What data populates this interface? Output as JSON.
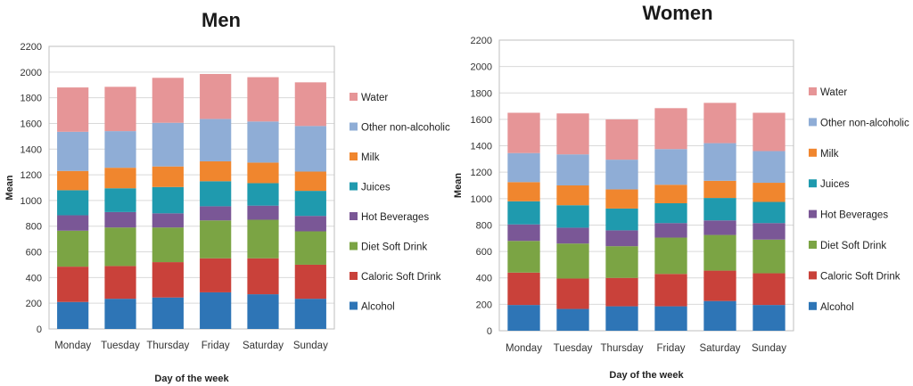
{
  "chart_data": [
    {
      "type": "bar",
      "stacked": true,
      "title": "Men",
      "xlabel": "Day of the week",
      "ylabel": "Mean",
      "ylim": [
        0,
        2200
      ],
      "yticks": [
        0,
        200,
        400,
        600,
        800,
        1000,
        1200,
        1400,
        1600,
        1800,
        2000,
        2200
      ],
      "categories": [
        "Monday",
        "Tuesday",
        "Thursday",
        "Friday",
        "Saturday",
        "Sunday"
      ],
      "legend_position": "right",
      "series": [
        {
          "name": "Alcohol",
          "color": "#2E75B6",
          "values": [
            210,
            235,
            245,
            285,
            270,
            235
          ]
        },
        {
          "name": "Caloric Soft Drink",
          "color": "#C9413A",
          "values": [
            275,
            255,
            275,
            265,
            280,
            265
          ]
        },
        {
          "name": "Diet Soft Drink",
          "color": "#7BA444",
          "values": [
            280,
            300,
            270,
            295,
            300,
            260
          ]
        },
        {
          "name": "Hot Beverages",
          "color": "#7A5796",
          "values": [
            120,
            120,
            110,
            110,
            110,
            120
          ]
        },
        {
          "name": "Juices",
          "color": "#1F9AAE",
          "values": [
            195,
            185,
            205,
            195,
            175,
            195
          ]
        },
        {
          "name": "Milk",
          "color": "#F0862E",
          "values": [
            150,
            160,
            160,
            155,
            160,
            150
          ]
        },
        {
          "name": "Other non-alcoholic",
          "color": "#8FADD6",
          "values": [
            305,
            285,
            340,
            330,
            320,
            355
          ]
        },
        {
          "name": "Water",
          "color": "#E69597",
          "values": [
            345,
            345,
            350,
            350,
            345,
            340
          ]
        }
      ]
    },
    {
      "type": "bar",
      "stacked": true,
      "title": "Women",
      "xlabel": "Day of the week",
      "ylabel": "Mean",
      "ylim": [
        0,
        2200
      ],
      "yticks": [
        0,
        200,
        400,
        600,
        800,
        1000,
        1200,
        1400,
        1600,
        1800,
        2000,
        2200
      ],
      "categories": [
        "Monday",
        "Tuesday",
        "Thursday",
        "Friday",
        "Saturday",
        "Sunday"
      ],
      "legend_position": "right",
      "series": [
        {
          "name": "Alcohol",
          "color": "#2E75B6",
          "values": [
            195,
            165,
            185,
            185,
            225,
            195
          ]
        },
        {
          "name": "Caloric Soft Drink",
          "color": "#C9413A",
          "values": [
            245,
            230,
            215,
            245,
            230,
            240
          ]
        },
        {
          "name": "Diet Soft Drink",
          "color": "#7BA444",
          "values": [
            240,
            265,
            240,
            275,
            270,
            255
          ]
        },
        {
          "name": "Hot Beverages",
          "color": "#7A5796",
          "values": [
            125,
            120,
            120,
            110,
            110,
            125
          ]
        },
        {
          "name": "Juices",
          "color": "#1F9AAE",
          "values": [
            175,
            170,
            165,
            150,
            170,
            160
          ]
        },
        {
          "name": "Milk",
          "color": "#F0862E",
          "values": [
            145,
            150,
            145,
            140,
            130,
            145
          ]
        },
        {
          "name": "Other non-alcoholic",
          "color": "#8FADD6",
          "values": [
            220,
            235,
            225,
            270,
            285,
            240
          ]
        },
        {
          "name": "Water",
          "color": "#E69597",
          "values": [
            305,
            310,
            305,
            310,
            305,
            290
          ]
        }
      ]
    }
  ]
}
